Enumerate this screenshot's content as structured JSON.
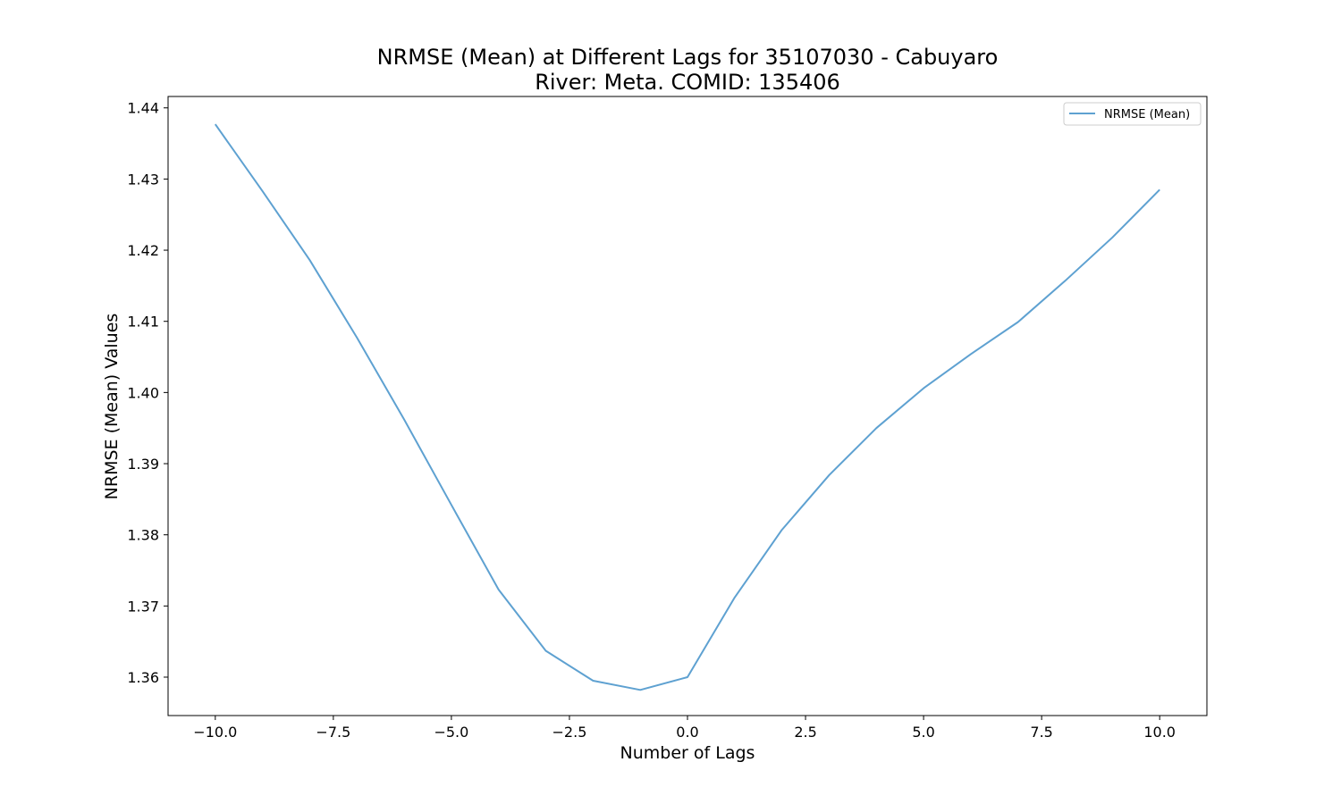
{
  "chart_data": {
    "type": "line",
    "title_line1": "NRMSE (Mean) at Different Lags for 35107030 - Cabuyaro",
    "title_line2": "River: Meta. COMID: 135406",
    "xlabel": "Number of Lags",
    "ylabel": "NRMSE (Mean) Values",
    "xlim": [
      -11.0,
      11.0
    ],
    "ylim": [
      1.3546,
      1.4416
    ],
    "x_ticks": [
      -10.0,
      -7.5,
      -5.0,
      -2.5,
      0.0,
      2.5,
      5.0,
      7.5,
      10.0
    ],
    "x_tick_labels": [
      "−10.0",
      "−7.5",
      "−5.0",
      "−2.5",
      "0.0",
      "2.5",
      "5.0",
      "7.5",
      "10.0"
    ],
    "y_ticks": [
      1.36,
      1.37,
      1.38,
      1.39,
      1.4,
      1.41,
      1.42,
      1.43,
      1.44
    ],
    "y_tick_labels": [
      "1.36",
      "1.37",
      "1.38",
      "1.39",
      "1.40",
      "1.41",
      "1.42",
      "1.43",
      "1.44"
    ],
    "grid": false,
    "legend_position": "top-right",
    "series": [
      {
        "name": "NRMSE (Mean)",
        "color": "#5ea1d1",
        "x": [
          -10,
          -9,
          -8,
          -7,
          -6,
          -5,
          -4,
          -3,
          -2,
          -1,
          0,
          1,
          2,
          3,
          4,
          5,
          6,
          7,
          8,
          9,
          10
        ],
        "y": [
          1.4377,
          1.4283,
          1.4186,
          1.4077,
          1.3962,
          1.3842,
          1.3723,
          1.3637,
          1.3595,
          1.3582,
          1.36,
          1.3712,
          1.3807,
          1.3884,
          1.395,
          1.4006,
          1.4054,
          1.4099,
          1.4157,
          1.4218,
          1.4285
        ]
      }
    ]
  }
}
